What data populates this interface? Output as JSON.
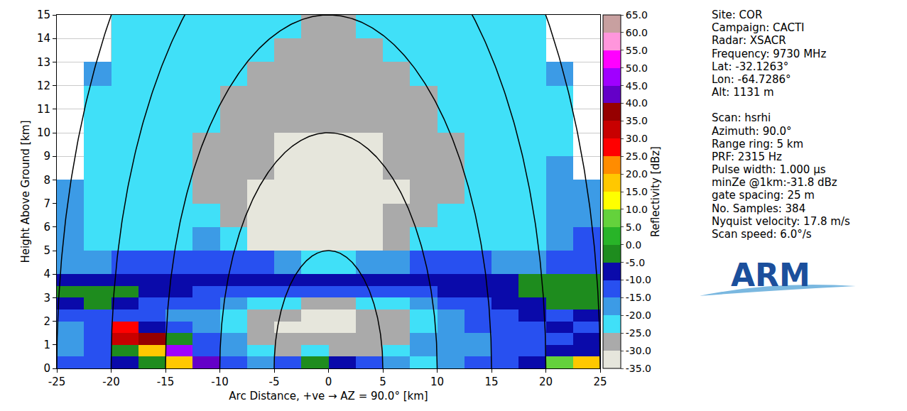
{
  "chart_data": {
    "type": "heatmap",
    "x_label": "Arc Distance, +ve → AZ = 90.0° [km]",
    "y_label": "Height Above Ground [km]",
    "xlim": [
      -25,
      25
    ],
    "xticks": [
      -25,
      -20,
      -15,
      -10,
      -5,
      0,
      5,
      10,
      15,
      20,
      25
    ],
    "ylim": [
      0,
      15
    ],
    "yticks": [
      0,
      1,
      2,
      3,
      4,
      5,
      6,
      7,
      8,
      9,
      10,
      11,
      12,
      13,
      14,
      15
    ],
    "grid": true,
    "range_rings": [
      5,
      10,
      15,
      20,
      25
    ],
    "x": [
      -25,
      -22.5,
      -20,
      -17.5,
      -15,
      -12.5,
      -10,
      -7.5,
      -5,
      -2.5,
      0,
      2.5,
      5,
      7.5,
      10,
      12.5,
      15,
      17.5,
      20,
      22.5,
      25
    ],
    "y": [
      0,
      0.5,
      1,
      1.5,
      2,
      2.5,
      3,
      3.5,
      4,
      5,
      6,
      7,
      8,
      9,
      10,
      11,
      12,
      13,
      14,
      15
    ],
    "z": [
      [
        -15,
        -12,
        -10,
        -5,
        15,
        40,
        -15,
        -20,
        -15,
        -5,
        -8,
        -15,
        -20,
        -22,
        -18,
        -15,
        -12,
        -10,
        5,
        20
      ],
      [
        -18,
        -15,
        -5,
        15,
        45,
        -12,
        -18,
        -25,
        -28,
        -25,
        -28,
        -28,
        -25,
        -20,
        -18,
        -16,
        -15,
        -12,
        -10,
        -8
      ],
      [
        -18,
        -15,
        30,
        35,
        -5,
        -15,
        -20,
        -28,
        -30,
        -30,
        -30,
        -30,
        -28,
        -20,
        -18,
        -16,
        -15,
        -15,
        -12,
        -10
      ],
      [
        -18,
        -12,
        25,
        -8,
        -15,
        -18,
        -22,
        -28,
        -31,
        -31,
        -31,
        -30,
        -28,
        -22,
        -18,
        -15,
        -15,
        -12,
        -10,
        -12
      ],
      [
        -15,
        -15,
        -12,
        -15,
        -18,
        -20,
        -22,
        -28,
        -30,
        -31,
        -31,
        -30,
        -28,
        -22,
        -18,
        -15,
        -12,
        -10,
        -12,
        -10
      ],
      [
        -8,
        -5,
        -10,
        -12,
        -15,
        -15,
        -18,
        -22,
        -25,
        -28,
        -28,
        -25,
        -22,
        -18,
        -15,
        -12,
        -10,
        -8,
        -5,
        -5
      ],
      [
        -2,
        -2,
        -5,
        -8,
        -10,
        -12,
        -12,
        -15,
        -15,
        -15,
        -15,
        -15,
        -15,
        -12,
        -10,
        -8,
        -8,
        -5,
        -2,
        -2
      ],
      [
        -8,
        -10,
        -8,
        -10,
        -10,
        -10,
        -10,
        -10,
        -10,
        -10,
        -10,
        -10,
        -10,
        -10,
        -10,
        -8,
        -8,
        -5,
        -5,
        -5
      ],
      [
        -18,
        -18,
        -15,
        -15,
        -15,
        -12,
        -12,
        -15,
        -20,
        -22,
        -22,
        -20,
        -18,
        -15,
        -15,
        -15,
        -18,
        -18,
        -15,
        -12
      ],
      [
        -19,
        -21,
        -22,
        -22,
        -22,
        -18,
        -25,
        -31,
        -32,
        -32,
        -32,
        -32,
        -30,
        -25,
        -22,
        -22,
        -21,
        -21,
        -19,
        -15
      ],
      [
        -19,
        -21,
        -22,
        -22,
        -25,
        -25,
        -28,
        -31,
        -32,
        -32,
        -32,
        -32,
        -30,
        -28,
        -25,
        -22,
        -22,
        -21,
        -19,
        -18
      ],
      [
        -19,
        -21,
        -22,
        -22,
        -25,
        -26,
        -28,
        -31,
        -32,
        -32,
        -32,
        -32,
        -31,
        -28,
        -26,
        -25,
        -22,
        -21,
        -19,
        -19
      ],
      [
        null,
        -21,
        -22,
        -22,
        -25,
        -26,
        -28,
        -30,
        -32,
        -32,
        -32,
        -32,
        -30,
        -28,
        -26,
        -25,
        -22,
        -21,
        -19,
        null
      ],
      [
        null,
        -21,
        -21,
        -22,
        -24,
        -26,
        -27,
        -30,
        -31,
        -32,
        -32,
        -31,
        -30,
        -27,
        -26,
        -24,
        -22,
        -21,
        -21,
        null
      ],
      [
        null,
        -21,
        -21,
        -22,
        -23,
        -25,
        -26,
        -28,
        -29,
        -29,
        -29,
        -29,
        -28,
        -26,
        -25,
        -23,
        -22,
        -21,
        -21,
        null
      ],
      [
        null,
        -21,
        -21,
        -21,
        -22,
        -24,
        -26,
        -27,
        -28,
        -28,
        -28,
        -28,
        -27,
        -26,
        -24,
        -22,
        -21,
        -21,
        -21,
        null
      ],
      [
        null,
        -19,
        -21,
        -21,
        -22,
        -23,
        -25,
        -26,
        -27,
        -27,
        -27,
        -27,
        -26,
        -25,
        -23,
        -22,
        -21,
        -21,
        -19,
        null
      ],
      [
        null,
        null,
        -21,
        -21,
        -21,
        -22,
        -24,
        -25,
        -26,
        -26,
        -26,
        -26,
        -25,
        -24,
        -22,
        -21,
        -21,
        -21,
        null,
        null
      ],
      [
        null,
        null,
        -21,
        -21,
        -21,
        -22,
        -23,
        -24,
        -25,
        -26,
        -26,
        -25,
        -24,
        -23,
        -22,
        -21,
        -21,
        -21,
        null,
        null
      ]
    ],
    "colorbar": {
      "title": "Reflectivity [dBz]",
      "range": [
        -35,
        65
      ],
      "ticks": [
        {
          "value": -35,
          "label": "-35.0"
        },
        {
          "value": -30,
          "label": "-30.0"
        },
        {
          "value": -25,
          "label": "-25.0"
        },
        {
          "value": -20,
          "label": "-20.0"
        },
        {
          "value": -15,
          "label": "-15.0"
        },
        {
          "value": -10,
          "label": "-10.0"
        },
        {
          "value": -5,
          "label": "-5.0"
        },
        {
          "value": 0,
          "label": "0.0"
        },
        {
          "value": 5,
          "label": "5.0"
        },
        {
          "value": 10,
          "label": "10.0"
        },
        {
          "value": 15,
          "label": "15.0"
        },
        {
          "value": 20,
          "label": "20.0"
        },
        {
          "value": 25,
          "label": "25.0"
        },
        {
          "value": 30,
          "label": "30.0"
        },
        {
          "value": 35,
          "label": "35.0"
        },
        {
          "value": 40,
          "label": "40.0"
        },
        {
          "value": 45,
          "label": "45.0"
        },
        {
          "value": 50,
          "label": "50.0"
        },
        {
          "value": 55,
          "label": "55.0"
        },
        {
          "value": 60,
          "label": "60.0"
        },
        {
          "value": 65,
          "label": "65.0"
        }
      ],
      "colors": [
        "#e6e6dc",
        "#aaaaaa",
        "#40e0f8",
        "#3c9be6",
        "#2850f0",
        "#0a0aaa",
        "#1e8c1e",
        "#28b428",
        "#64d23c",
        "#ffff00",
        "#ffc800",
        "#ff8c00",
        "#ff0000",
        "#c80000",
        "#960000",
        "#6400c8",
        "#a000ff",
        "#ff00ff",
        "#ff96dc",
        "#c8a0a0"
      ]
    },
    "annotations": [
      [
        "Site: COR",
        "Campaign: CACTI",
        "Radar: XSACR",
        "Frequency: 9730 MHz",
        "Lat: -32.1263°",
        "Lon: -64.7286°",
        "Alt: 1131 m"
      ],
      [
        "Scan: hsrhi",
        "Azimuth: 90.0°",
        "Range ring: 5 km",
        "PRF: 2315 Hz",
        "Pulse width: 1.000 μs",
        "minZe @1km:-31.8 dBz",
        "gate spacing: 25 m",
        "No. Samples: 384",
        "Nyquist velocity: 17.8 m/s",
        "Scan speed: 6.0°/s"
      ]
    ],
    "logo": "ARM"
  }
}
